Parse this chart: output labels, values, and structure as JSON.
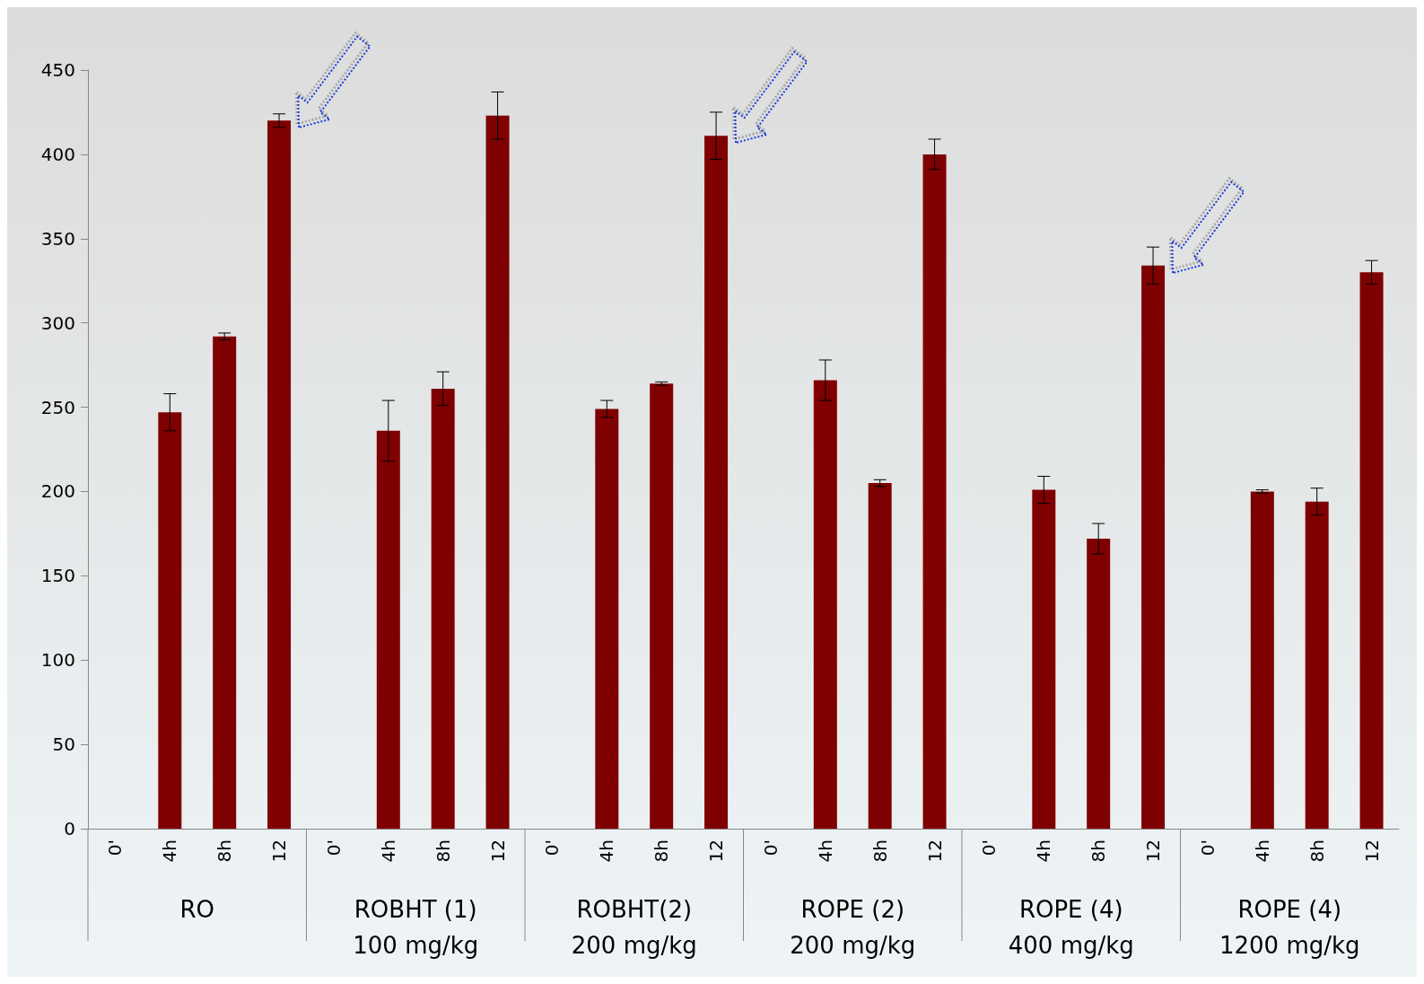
{
  "chart_data": {
    "type": "bar",
    "categories": [
      "0'",
      "4h",
      "8h",
      "12",
      "0'",
      "4h",
      "8h",
      "12",
      "0'",
      "4h",
      "8h",
      "12",
      "0'",
      "4h",
      "8h",
      "12",
      "0'",
      "4h",
      "8h",
      "12",
      "0'",
      "4h",
      "8h",
      "12"
    ],
    "values": [
      0,
      247,
      292,
      420,
      0,
      236,
      261,
      423,
      0,
      249,
      264,
      411,
      0,
      266,
      205,
      400,
      0,
      201,
      172,
      334,
      0,
      200,
      194,
      330
    ],
    "errors": [
      null,
      11,
      2,
      4,
      null,
      18,
      10,
      14,
      null,
      5,
      1,
      14,
      null,
      12,
      2,
      9,
      null,
      8,
      9,
      11,
      null,
      1,
      8,
      7
    ],
    "color": "#7f0000",
    "ylim": [
      0,
      450
    ],
    "yticks": [
      0,
      50,
      100,
      150,
      200,
      250,
      300,
      350,
      400,
      450
    ],
    "grid": false,
    "annotations": [
      "RO",
      "ROBHT (1)\n100 mg/kg",
      "ROBHT(2)\n200 mg/kg",
      "ROPE (2)\n200 mg/kg",
      "ROPE (4)\n400 mg/kg",
      "ROPE (4)\n1200 mg/kg"
    ]
  }
}
